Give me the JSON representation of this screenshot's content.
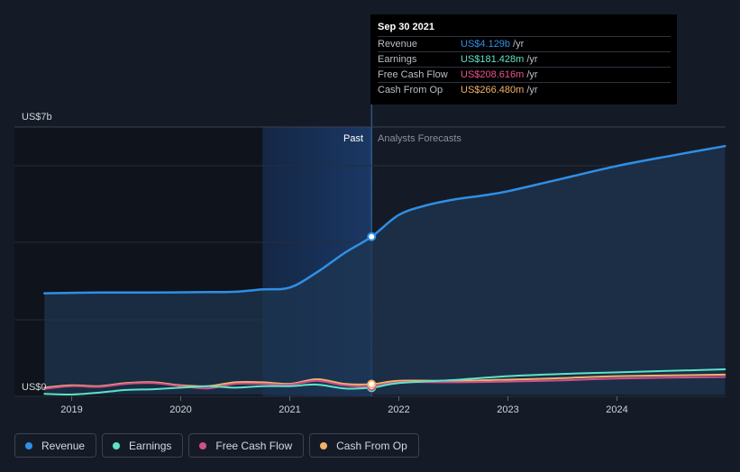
{
  "tooltip": {
    "date": "Sep 30 2021",
    "rows": [
      {
        "label": "Revenue",
        "value": "US$4.129b",
        "unit": "/yr",
        "color": "#2f8fe6"
      },
      {
        "label": "Earnings",
        "value": "US$181.428m",
        "unit": "/yr",
        "color": "#5de3c9"
      },
      {
        "label": "Free Cash Flow",
        "value": "US$208.616m",
        "unit": "/yr",
        "color": "#e8558a"
      },
      {
        "label": "Cash From Op",
        "value": "US$266.480m",
        "unit": "/yr",
        "color": "#f2b36a"
      }
    ]
  },
  "labels": {
    "y_top": "US$7b",
    "y_bottom": "US$0",
    "past": "Past",
    "forecast": "Analysts Forecasts"
  },
  "legend": [
    {
      "label": "Revenue",
      "color": "#2f8fe6"
    },
    {
      "label": "Earnings",
      "color": "#5de3c9"
    },
    {
      "label": "Free Cash Flow",
      "color": "#d0508c"
    },
    {
      "label": "Cash From Op",
      "color": "#f2b36a"
    }
  ],
  "chart_data": {
    "type": "line",
    "x_ticks": [
      "2019",
      "2020",
      "2021",
      "2022",
      "2023",
      "2024"
    ],
    "y_unit": "US$ billions",
    "ylim": [
      0,
      7
    ],
    "past_end": 2021.75,
    "highlight_start": 2020.75,
    "series": [
      {
        "name": "Revenue",
        "color": "#2f8fe6",
        "points": [
          [
            2018.75,
            2.65
          ],
          [
            2019.25,
            2.67
          ],
          [
            2019.75,
            2.67
          ],
          [
            2020.25,
            2.68
          ],
          [
            2020.5,
            2.69
          ],
          [
            2020.75,
            2.75
          ],
          [
            2021.0,
            2.8
          ],
          [
            2021.25,
            3.2
          ],
          [
            2021.5,
            3.7
          ],
          [
            2021.75,
            4.13
          ],
          [
            2022.0,
            4.7
          ],
          [
            2022.25,
            4.95
          ],
          [
            2022.5,
            5.1
          ],
          [
            2022.75,
            5.2
          ],
          [
            2023.0,
            5.32
          ],
          [
            2023.5,
            5.65
          ],
          [
            2024.0,
            5.98
          ],
          [
            2024.5,
            6.25
          ],
          [
            2024.99,
            6.5
          ]
        ]
      },
      {
        "name": "Earnings",
        "color": "#5de3c9",
        "points": [
          [
            2018.75,
            0.02
          ],
          [
            2019.0,
            0.0
          ],
          [
            2019.25,
            0.05
          ],
          [
            2019.5,
            0.12
          ],
          [
            2019.75,
            0.14
          ],
          [
            2020.0,
            0.18
          ],
          [
            2020.25,
            0.22
          ],
          [
            2020.5,
            0.18
          ],
          [
            2020.75,
            0.22
          ],
          [
            2021.0,
            0.22
          ],
          [
            2021.25,
            0.26
          ],
          [
            2021.5,
            0.16
          ],
          [
            2021.75,
            0.18
          ],
          [
            2022.0,
            0.3
          ],
          [
            2022.5,
            0.38
          ],
          [
            2023.0,
            0.48
          ],
          [
            2023.5,
            0.54
          ],
          [
            2024.0,
            0.58
          ],
          [
            2024.99,
            0.66
          ]
        ]
      },
      {
        "name": "Free Cash Flow",
        "color": "#d0508c",
        "points": [
          [
            2018.75,
            0.15
          ],
          [
            2019.0,
            0.22
          ],
          [
            2019.25,
            0.2
          ],
          [
            2019.5,
            0.28
          ],
          [
            2019.75,
            0.3
          ],
          [
            2020.0,
            0.22
          ],
          [
            2020.25,
            0.16
          ],
          [
            2020.5,
            0.28
          ],
          [
            2020.75,
            0.28
          ],
          [
            2021.0,
            0.26
          ],
          [
            2021.25,
            0.36
          ],
          [
            2021.5,
            0.24
          ],
          [
            2021.75,
            0.21
          ],
          [
            2022.0,
            0.32
          ],
          [
            2022.5,
            0.32
          ],
          [
            2023.0,
            0.34
          ],
          [
            2023.5,
            0.37
          ],
          [
            2024.0,
            0.42
          ],
          [
            2024.99,
            0.46
          ]
        ]
      },
      {
        "name": "Cash From Op",
        "color": "#f2b36a",
        "points": [
          [
            2018.75,
            0.18
          ],
          [
            2019.0,
            0.24
          ],
          [
            2019.25,
            0.22
          ],
          [
            2019.5,
            0.3
          ],
          [
            2019.75,
            0.32
          ],
          [
            2020.0,
            0.24
          ],
          [
            2020.25,
            0.22
          ],
          [
            2020.5,
            0.32
          ],
          [
            2020.75,
            0.32
          ],
          [
            2021.0,
            0.28
          ],
          [
            2021.25,
            0.4
          ],
          [
            2021.5,
            0.28
          ],
          [
            2021.75,
            0.27
          ],
          [
            2022.0,
            0.36
          ],
          [
            2022.5,
            0.36
          ],
          [
            2023.0,
            0.39
          ],
          [
            2023.5,
            0.43
          ],
          [
            2024.0,
            0.48
          ],
          [
            2024.99,
            0.52
          ]
        ]
      }
    ]
  }
}
